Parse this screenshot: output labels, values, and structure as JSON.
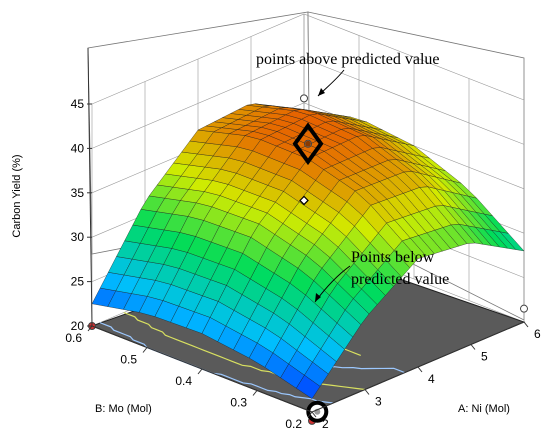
{
  "chart_data": {
    "type": "surface",
    "title": "",
    "zlabel": "Carbon Yield (%)",
    "xlabel": "A: Ni (Mol)",
    "ylabel": "B: Mo (Mol)",
    "z_ticks": [
      "20",
      "25",
      "30",
      "35",
      "40",
      "45"
    ],
    "x_ticks": [
      "2",
      "3",
      "4",
      "5",
      "6"
    ],
    "y_ticks": [
      "0.2",
      "0.3",
      "0.4",
      "0.5",
      "0.6"
    ],
    "zlim": [
      20,
      45
    ],
    "xlim": [
      2,
      6
    ],
    "ylim": [
      0.2,
      0.6
    ],
    "surface": {
      "ni": [
        2,
        3,
        4,
        5,
        6
      ],
      "mo": [
        0.2,
        0.3,
        0.4,
        0.5,
        0.6
      ],
      "yield": [
        [
          21.5,
          28.0,
          32.2,
          31.5,
          28.0
        ],
        [
          23.2,
          31.5,
          36.8,
          36.5,
          32.5
        ],
        [
          24.0,
          33.2,
          38.6,
          38.8,
          35.0
        ],
        [
          23.8,
          33.0,
          38.7,
          39.2,
          35.7
        ],
        [
          22.5,
          31.5,
          37.0,
          37.5,
          34.0
        ]
      ]
    },
    "design_points": [
      {
        "ni": 2,
        "mo": 0.6,
        "yield": 20.0
      },
      {
        "ni": 6,
        "mo": 0.6,
        "yield": 35.5
      },
      {
        "ni": 4,
        "mo": 0.4,
        "yield": 40.3
      },
      {
        "ni": 2,
        "mo": 0.2,
        "yield": 19.0
      },
      {
        "ni": 6,
        "mo": 0.2,
        "yield": 21.5
      }
    ],
    "annotations": [
      {
        "text": "points above predicted value",
        "target": "diamond-marker"
      },
      {
        "text": "Points below",
        "target": "circle-marker"
      },
      {
        "text": "predicted value",
        "target": "circle-marker"
      }
    ]
  }
}
